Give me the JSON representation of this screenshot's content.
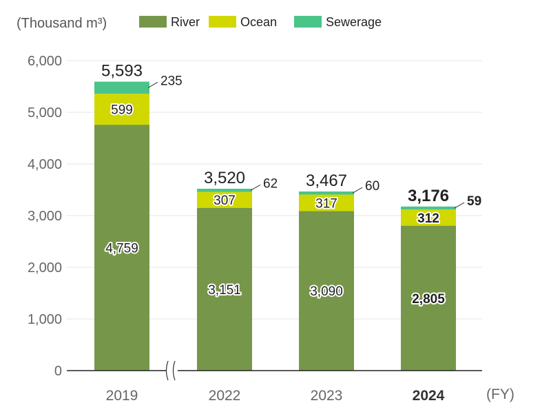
{
  "unit_label": "(Thousand m³)",
  "x_unit_label": "(FY)",
  "colors": {
    "River": "#76974a",
    "Ocean": "#d1d800",
    "Sewerage": "#4bc48a"
  },
  "chart_data": {
    "type": "bar",
    "stacked": true,
    "categories": [
      "2019",
      "2022",
      "2023",
      "2024"
    ],
    "highlight_category": "2024",
    "series": [
      {
        "name": "River",
        "values": [
          4759,
          3151,
          3090,
          2805
        ]
      },
      {
        "name": "Ocean",
        "values": [
          599,
          307,
          317,
          312
        ]
      },
      {
        "name": "Sewerage",
        "values": [
          235,
          62,
          60,
          59
        ]
      }
    ],
    "totals": [
      "5,593",
      "3,520",
      "3,467",
      "3,176"
    ],
    "value_labels": {
      "River": [
        "4,759",
        "3,151",
        "3,090",
        "2,805"
      ],
      "Ocean": [
        "599",
        "307",
        "317",
        "312"
      ],
      "Sewerage": [
        "235",
        "62",
        "60",
        "59"
      ]
    },
    "y_ticks": [
      "0",
      "1,000",
      "2,000",
      "3,000",
      "4,000",
      "5,000",
      "6,000"
    ],
    "ylim": [
      0,
      6000
    ],
    "axis_break_after": "2019",
    "legend_position": "top",
    "grid": true
  }
}
